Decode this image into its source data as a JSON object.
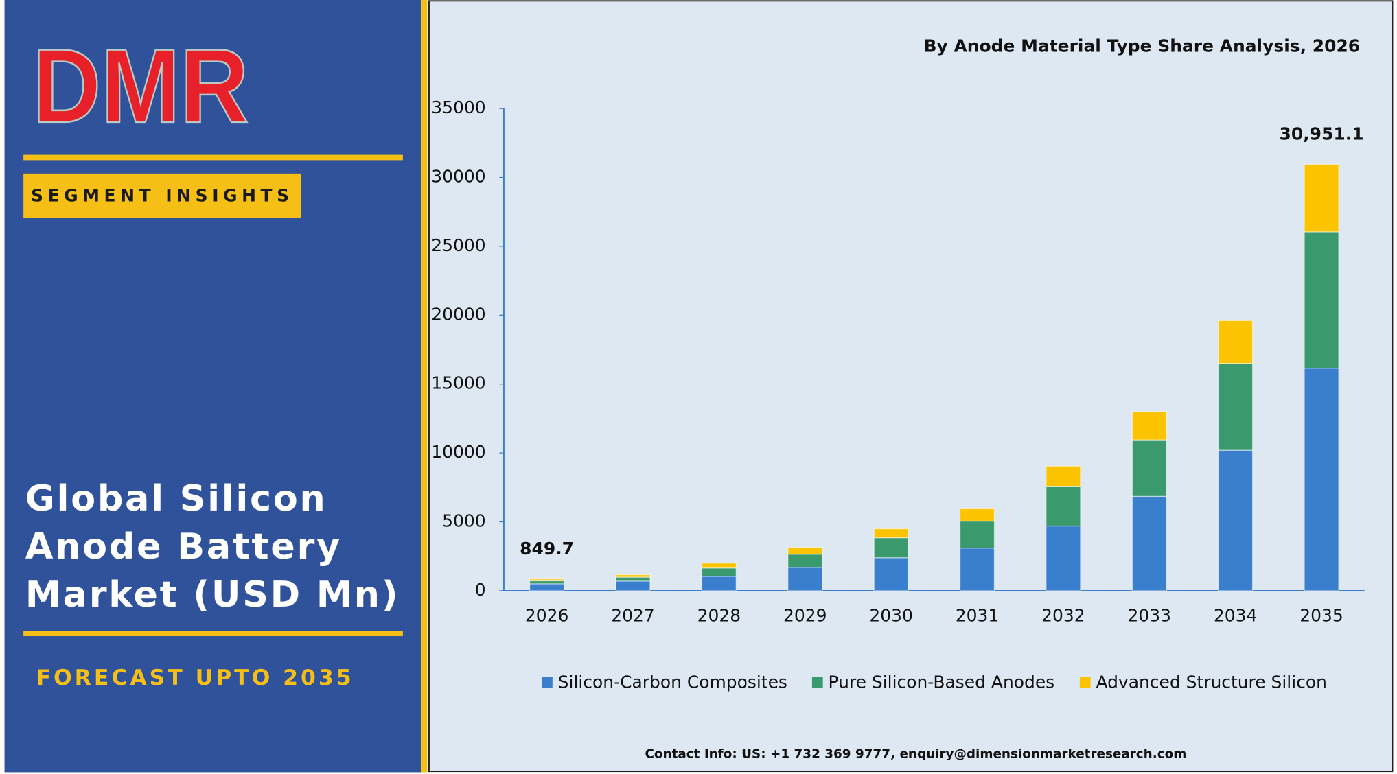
{
  "sidebar": {
    "logo": "DMR",
    "badge": "SEGMENT INSIGHTS",
    "title_lines": [
      "Global Silicon",
      "Anode Battery",
      "Market (USD Mn)"
    ],
    "forecast": "FORECAST UPTO 2035"
  },
  "chart_data": {
    "type": "stacked-bar",
    "title": "By Anode Material Type Share Analysis, 2026",
    "categories": [
      "2026",
      "2027",
      "2028",
      "2029",
      "2030",
      "2031",
      "2032",
      "2033",
      "2034",
      "2035"
    ],
    "series": [
      {
        "name": "Silicon-Carbon Composites",
        "color": "#3a7fce",
        "values": [
          500,
          700,
          1050,
          1700,
          2400,
          3100,
          4700,
          6850,
          10200,
          16150
        ]
      },
      {
        "name": "Pure Silicon-Based Anodes",
        "color": "#3a9a6e",
        "values": [
          220,
          290,
          600,
          950,
          1450,
          1950,
          2850,
          4100,
          6300,
          9900
        ]
      },
      {
        "name": "Advanced Structure Silicon",
        "color": "#fcc400",
        "values": [
          129.7,
          170,
          350,
          500,
          650,
          900,
          1500,
          2050,
          3100,
          4901.1
        ]
      }
    ],
    "total_labels": [
      {
        "index": 0,
        "value": 849.7,
        "label": "849.7"
      },
      {
        "index": 9,
        "value": 30951.1,
        "label": "30,951.1"
      }
    ],
    "ylim": [
      0,
      35000
    ],
    "yticks": [
      0,
      5000,
      10000,
      15000,
      20000,
      25000,
      30000,
      35000
    ],
    "legend": "bottom"
  },
  "footer": {
    "contact": "Contact Info: US: +1 732 369 9777, enquiry@dimensionmarketresearch.com"
  }
}
